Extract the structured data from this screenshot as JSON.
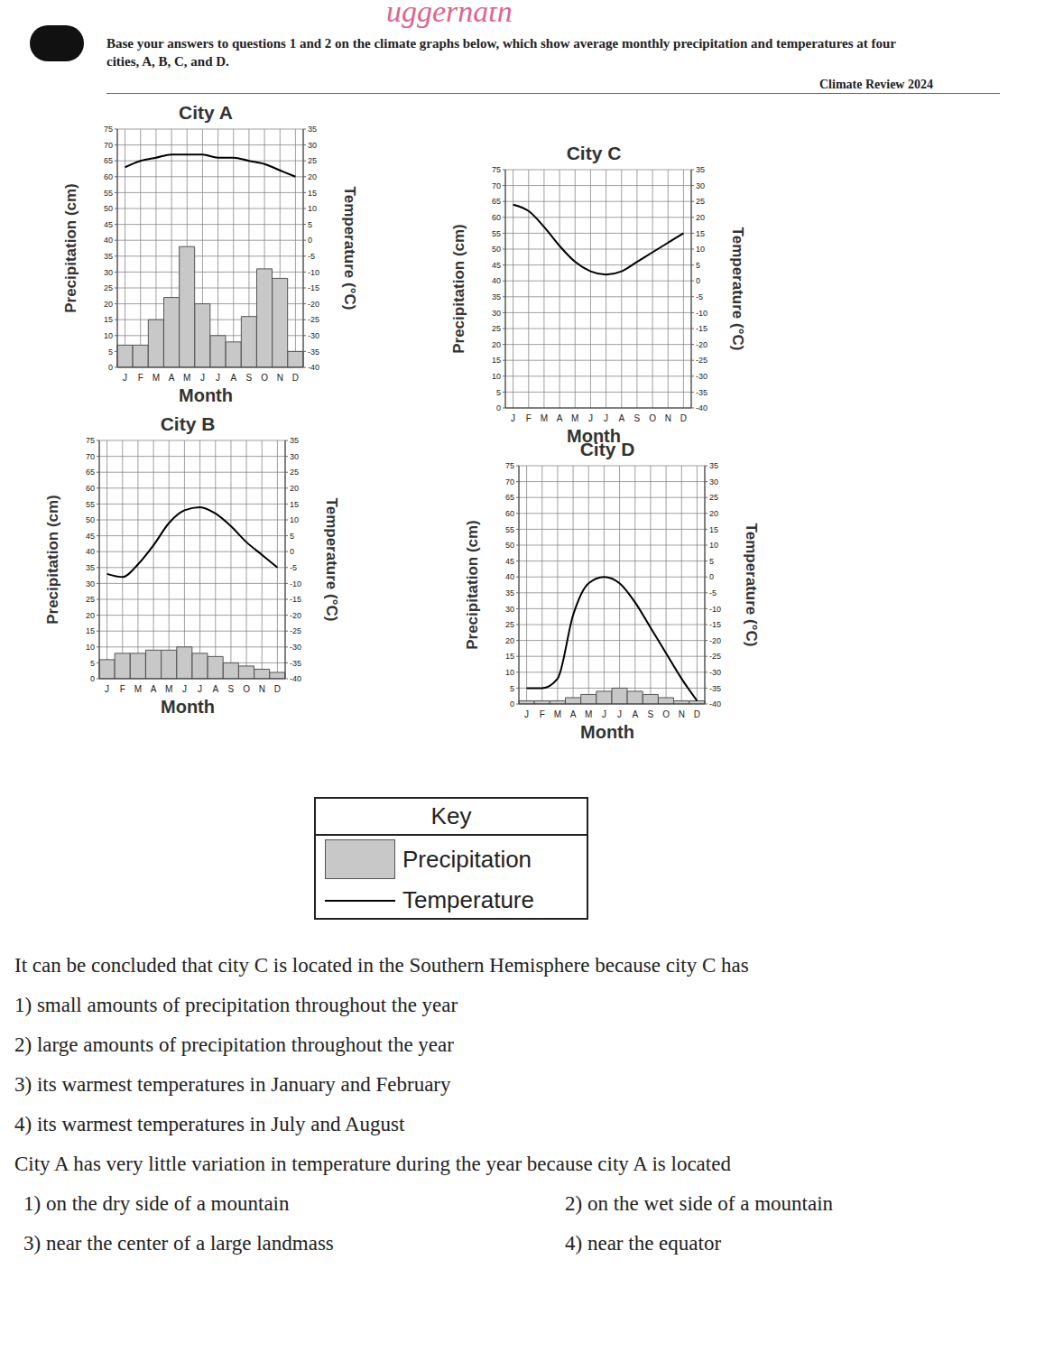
{
  "handwriting": "uggernath",
  "header": {
    "intro": "Base your answers to questions 1 and 2 on the climate graphs below, which show average monthly precipitation and temperatures at four cities, A, B, C, and D.",
    "badge": "Climate Review 2024"
  },
  "chart_data": [
    {
      "type": "bar",
      "title": "City A",
      "xlabel": "Month",
      "ylabel": "Precipitation (cm)",
      "y2label": "Temperature (°C)",
      "categories": [
        "J",
        "F",
        "M",
        "A",
        "M",
        "J",
        "J",
        "A",
        "S",
        "O",
        "N",
        "D"
      ],
      "series": [
        {
          "name": "Precipitation",
          "type": "bar",
          "color": "#c8c8c8",
          "values": [
            7,
            7,
            15,
            22,
            38,
            20,
            10,
            8,
            16,
            31,
            28,
            5
          ]
        },
        {
          "name": "Temperature",
          "type": "line",
          "color": "#000000",
          "axis": "y2",
          "values": [
            23,
            25,
            26,
            27,
            27,
            27,
            26,
            26,
            25,
            24,
            22,
            20
          ]
        }
      ],
      "ylim": [
        0,
        75
      ],
      "yticks": [
        0,
        5,
        10,
        15,
        20,
        25,
        30,
        35,
        40,
        45,
        50,
        55,
        60,
        65,
        70,
        75
      ],
      "y2lim": [
        -40,
        35
      ],
      "y2ticks": [
        -40,
        -35,
        -30,
        -25,
        -20,
        -15,
        -10,
        -5,
        0,
        5,
        10,
        15,
        20,
        25,
        30,
        35
      ],
      "grid": true
    },
    {
      "type": "bar",
      "title": "City C",
      "xlabel": "Month",
      "ylabel": "Precipitation (cm)",
      "y2label": "Temperature (°C)",
      "categories": [
        "J",
        "F",
        "M",
        "A",
        "M",
        "J",
        "J",
        "A",
        "S",
        "O",
        "N",
        "D"
      ],
      "series": [
        {
          "name": "Precipitation",
          "type": "bar",
          "color": "#c8c8c8",
          "values": [
            0,
            0,
            0,
            0,
            0,
            0,
            0,
            0,
            0,
            0,
            0,
            0
          ]
        },
        {
          "name": "Temperature",
          "type": "line",
          "color": "#000000",
          "axis": "y2",
          "values": [
            24,
            22,
            17,
            11,
            6,
            3,
            2,
            3,
            6,
            9,
            12,
            15
          ]
        }
      ],
      "ylim": [
        0,
        75
      ],
      "yticks": [
        0,
        5,
        10,
        15,
        20,
        25,
        30,
        35,
        40,
        45,
        50,
        55,
        60,
        65,
        70,
        75
      ],
      "y2lim": [
        -40,
        35
      ],
      "y2ticks": [
        -40,
        -35,
        -30,
        -25,
        -20,
        -15,
        -10,
        -5,
        0,
        5,
        10,
        15,
        20,
        25,
        30,
        35
      ],
      "grid": true
    },
    {
      "type": "bar",
      "title": "City B",
      "xlabel": "Month",
      "ylabel": "Precipitation (cm)",
      "y2label": "Temperature (°C)",
      "categories": [
        "J",
        "F",
        "M",
        "A",
        "M",
        "J",
        "J",
        "A",
        "S",
        "O",
        "N",
        "D"
      ],
      "series": [
        {
          "name": "Precipitation",
          "type": "bar",
          "color": "#c8c8c8",
          "values": [
            6,
            8,
            8,
            9,
            9,
            10,
            8,
            7,
            5,
            4,
            3,
            2
          ]
        },
        {
          "name": "Temperature",
          "type": "line",
          "color": "#000000",
          "axis": "y2",
          "values": [
            -7,
            -8,
            -4,
            2,
            9,
            13,
            14,
            12,
            8,
            3,
            -1,
            -5
          ]
        }
      ],
      "ylim": [
        0,
        75
      ],
      "yticks": [
        0,
        5,
        10,
        15,
        20,
        25,
        30,
        35,
        40,
        45,
        50,
        55,
        60,
        65,
        70,
        75
      ],
      "y2lim": [
        -40,
        35
      ],
      "y2ticks": [
        -40,
        -35,
        -30,
        -25,
        -20,
        -15,
        -10,
        -5,
        0,
        5,
        10,
        15,
        20,
        25,
        30,
        35
      ],
      "grid": true
    },
    {
      "type": "bar",
      "title": "City D",
      "xlabel": "Month",
      "ylabel": "Precipitation (cm)",
      "y2label": "Temperature (°C)",
      "categories": [
        "J",
        "F",
        "M",
        "A",
        "M",
        "J",
        "J",
        "A",
        "S",
        "O",
        "N",
        "D"
      ],
      "series": [
        {
          "name": "Precipitation",
          "type": "bar",
          "color": "#c8c8c8",
          "values": [
            1,
            1,
            1,
            2,
            3,
            4,
            5,
            4,
            3,
            2,
            1,
            1
          ]
        },
        {
          "name": "Temperature",
          "type": "line",
          "color": "#000000",
          "axis": "y2",
          "values": [
            -35,
            -35,
            -32,
            -12,
            -2,
            0,
            -2,
            -8,
            -16,
            -24,
            -32,
            -39
          ]
        }
      ],
      "ylim": [
        0,
        75
      ],
      "yticks": [
        0,
        5,
        10,
        15,
        20,
        25,
        30,
        35,
        40,
        45,
        50,
        55,
        60,
        65,
        70,
        75
      ],
      "y2lim": [
        -40,
        35
      ],
      "y2ticks": [
        -40,
        -35,
        -30,
        -25,
        -20,
        -15,
        -10,
        -5,
        0,
        5,
        10,
        15,
        20,
        25,
        30,
        35
      ],
      "grid": true
    }
  ],
  "key": {
    "title": "Key"
  },
  "questions": [
    {
      "stem": "It can be concluded that city C is located in the Southern Hemisphere because city C has",
      "choices": [
        {
          "label": "1)",
          "text": "small amounts of precipitation throughout the year"
        },
        {
          "label": "2)",
          "text": "large amounts of precipitation throughout the year"
        },
        {
          "label": "3)",
          "text": "its warmest temperatures in January and February"
        },
        {
          "label": "4)",
          "text": "its warmest temperatures in July and August"
        }
      ]
    },
    {
      "stem": "City A has very little variation in temperature during the year because city A is located",
      "choices": [
        {
          "label": "1)",
          "text": "on the dry side of a mountain"
        },
        {
          "label": "2)",
          "text": "on the wet side of a mountain"
        },
        {
          "label": "3)",
          "text": "near the center of a large landmass"
        },
        {
          "label": "4)",
          "text": "near the equator"
        }
      ]
    }
  ]
}
